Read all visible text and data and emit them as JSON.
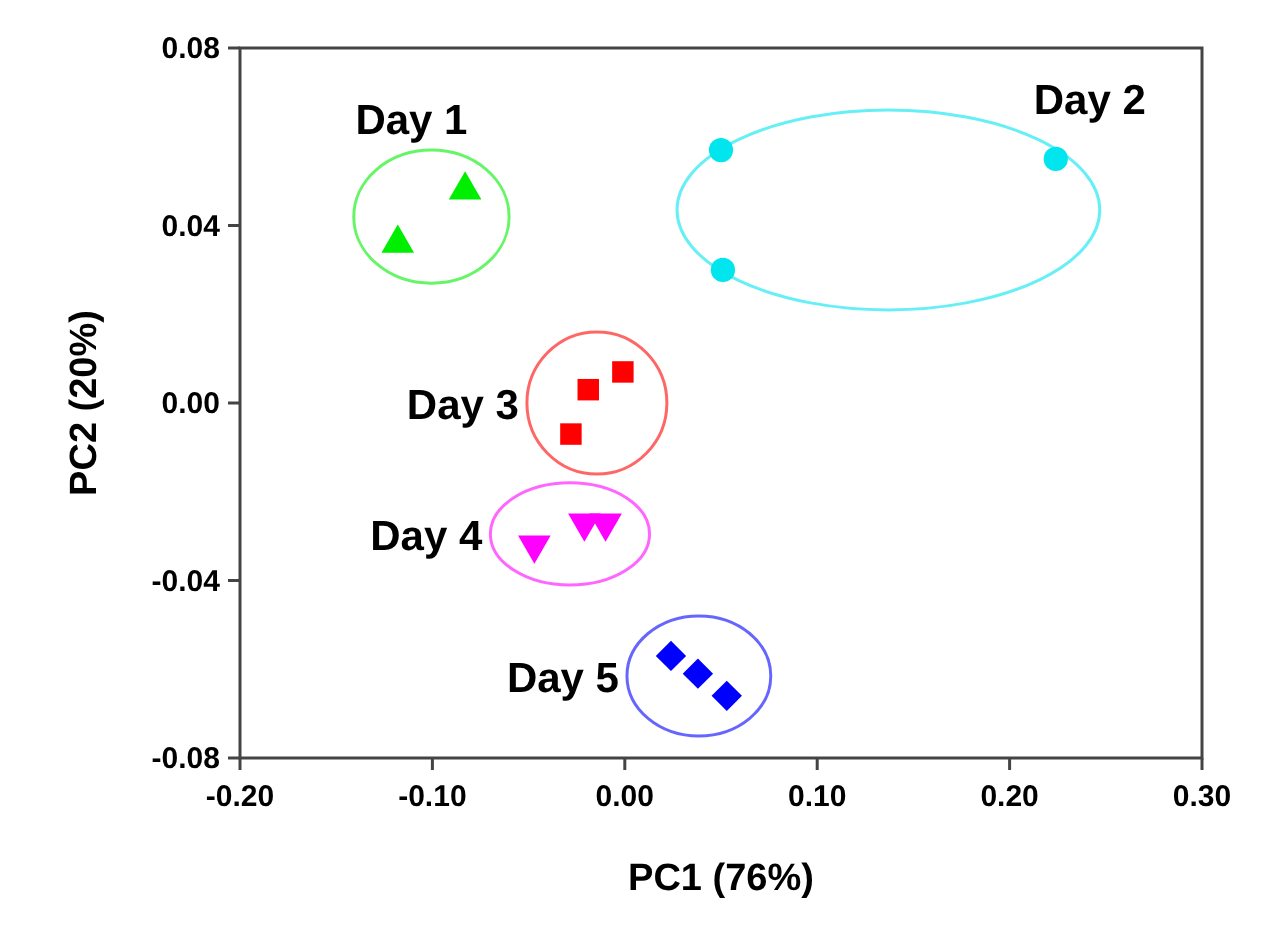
{
  "chart_data": {
    "type": "scatter",
    "xlabel": "PC1 (76%)",
    "ylabel": "PC2 (20%)",
    "xlim": [
      -0.2,
      0.3
    ],
    "xticks": [
      {
        "value": -0.2,
        "label": "-0.20"
      },
      {
        "value": -0.1,
        "label": "-0.10"
      },
      {
        "value": 0,
        "label": "0.00"
      },
      {
        "value": 0.1,
        "label": "0.10"
      },
      {
        "value": 0.2,
        "label": "0.20"
      },
      {
        "value": 0.3,
        "label": "0.30"
      }
    ],
    "ylim": [
      -0.08,
      0.08
    ],
    "yticks": [
      {
        "value": -0.08,
        "label": "-0.08"
      },
      {
        "value": -0.04,
        "label": "-0.04"
      },
      {
        "value": 0,
        "label": "0.00"
      },
      {
        "value": 0.04,
        "label": "0.04"
      },
      {
        "value": 0.08,
        "label": "0.08"
      }
    ],
    "series": [
      {
        "name": "Day 1",
        "color": "#00ee00",
        "marker": "triangle",
        "x": [
          -0.118,
          -0.083
        ],
        "values": [
          0.036,
          0.048
        ]
      },
      {
        "name": "Day 2",
        "color": "#00e5ee",
        "marker": "circle",
        "x": [
          0.05,
          0.051,
          0.224
        ],
        "values": [
          0.057,
          0.03,
          0.055
        ]
      },
      {
        "name": "Day 3",
        "color": "#ff0000",
        "marker": "square",
        "x": [
          -0.028,
          -0.019,
          -0.001
        ],
        "values": [
          -0.007,
          0.003,
          0.007
        ]
      },
      {
        "name": "Day 4",
        "color": "#ff00ff",
        "marker": "triangle-down",
        "x": [
          -0.047,
          -0.021,
          -0.01
        ],
        "values": [
          -0.032,
          -0.027,
          -0.027
        ]
      },
      {
        "name": "Day 5",
        "color": "#0000ff",
        "marker": "diamond",
        "x": [
          0.024,
          0.038,
          0.053
        ],
        "values": [
          -0.057,
          -0.061,
          -0.066
        ]
      }
    ]
  }
}
